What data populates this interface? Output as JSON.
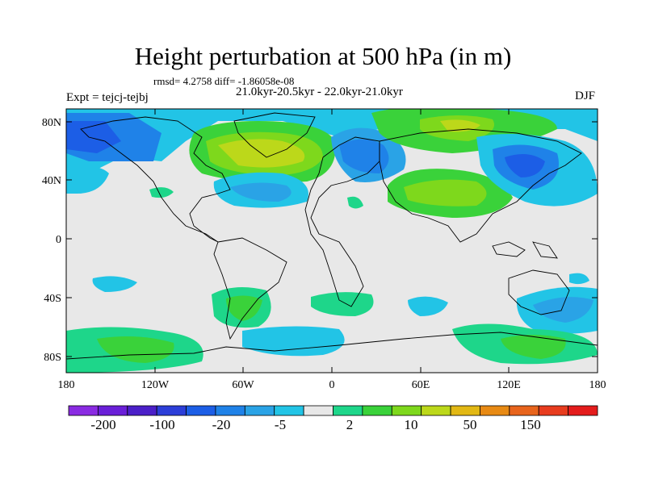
{
  "title": "Height perturbation at 500 hPa (in m)",
  "stats": "rmsd= 4.2758 diff= -1.86058e-08",
  "period": "21.0kyr-20.5kyr - 22.0kyr-21.0kyr",
  "experiment": "Expt = tejcj-tejbj",
  "season": "DJF",
  "lat_ticks": [
    "80N",
    "40N",
    "0",
    "40S",
    "80S"
  ],
  "lon_ticks": [
    "180",
    "120W",
    "60W",
    "0",
    "60E",
    "120E",
    "180"
  ],
  "colorbar": {
    "colors": [
      "#8a2be2",
      "#6a1fd8",
      "#4b1fc8",
      "#2c3ed8",
      "#1c5ee6",
      "#1f82e8",
      "#2aa3e6",
      "#22c4e6",
      "#e8e8e8",
      "#1ed68a",
      "#3ad23a",
      "#7ed81c",
      "#bcd81a",
      "#e2b814",
      "#e88a14",
      "#e8641c",
      "#e83c1e",
      "#e41c1c"
    ],
    "labels": [
      "-200",
      "-100",
      "-20",
      "-5",
      "2",
      "10",
      "50",
      "150"
    ]
  }
}
